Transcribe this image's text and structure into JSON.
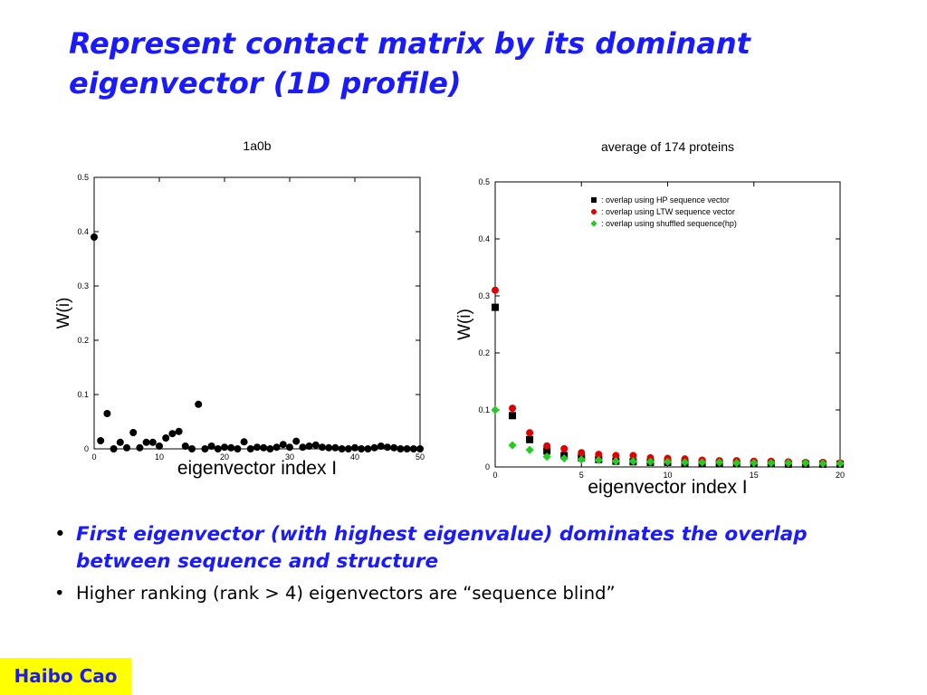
{
  "slide": {
    "title": "Represent contact matrix by its dominant eigenvector (1D profile)",
    "bullets": [
      "First eigenvector (with highest eigenvalue) dominates the overlap between sequence and structure",
      "Higher ranking (rank > 4) eigenvectors are “sequence blind”"
    ],
    "author": "Haibo Cao",
    "colors": {
      "title": "#1a1aff",
      "author_bg": "#ffff00"
    }
  },
  "chart_data": [
    {
      "type": "scatter",
      "title": "1a0b",
      "xlabel": "eigenvector index I",
      "ylabel": "W(i)",
      "xlim": [
        0,
        50
      ],
      "ylim": [
        0,
        0.5
      ],
      "xticks": [
        0,
        10,
        20,
        30,
        40,
        50
      ],
      "yticks": [
        0,
        0.1,
        0.2,
        0.3,
        0.4,
        0.5
      ],
      "ytick_labels": [
        "0",
        "0.1",
        "0.2",
        "0.3",
        "0.4",
        "0.5"
      ],
      "grid": false,
      "series": [
        {
          "color": "#000000",
          "marker": "circle",
          "x": [
            0,
            1,
            2,
            3,
            4,
            5,
            6,
            7,
            8,
            9,
            10,
            11,
            12,
            13,
            14,
            15,
            16,
            17,
            18,
            19,
            20,
            21,
            22,
            23,
            24,
            25,
            26,
            27,
            28,
            29,
            30,
            31,
            32,
            33,
            34,
            35,
            36,
            37,
            38,
            39,
            40,
            41,
            42,
            43,
            44,
            45,
            46,
            47,
            48,
            49,
            50
          ],
          "y": [
            0.39,
            0.015,
            0.065,
            0.0,
            0.012,
            0.002,
            0.03,
            0.002,
            0.012,
            0.012,
            0.005,
            0.02,
            0.028,
            0.032,
            0.005,
            0.0,
            0.082,
            0.0,
            0.005,
            0.0,
            0.003,
            0.002,
            0.0,
            0.013,
            0.0,
            0.003,
            0.002,
            0.0,
            0.003,
            0.008,
            0.003,
            0.014,
            0.003,
            0.005,
            0.007,
            0.003,
            0.002,
            0.002,
            0.0,
            0.0,
            0.002,
            0.0,
            0.0,
            0.002,
            0.005,
            0.003,
            0.002,
            0.0,
            0.0,
            0.0,
            0.0
          ]
        }
      ]
    },
    {
      "type": "scatter",
      "title": "average of 174 proteins",
      "xlabel": "eigenvector index I",
      "ylabel": "W(i)",
      "xlim": [
        0,
        20
      ],
      "ylim": [
        0,
        0.5
      ],
      "xticks": [
        0,
        5,
        10,
        15,
        20
      ],
      "yticks": [
        0,
        0.1,
        0.2,
        0.3,
        0.4,
        0.5
      ],
      "ytick_labels": [
        "0",
        "0.1",
        "0.2",
        "0.3",
        "0.4",
        "0.5"
      ],
      "grid": false,
      "legend_position": "top-right",
      "series": [
        {
          "name": "overlap using HP sequence vector",
          "color": "#000000",
          "marker": "square",
          "x": [
            0,
            1,
            2,
            3,
            4,
            5,
            6,
            7,
            8,
            9,
            10,
            11,
            12,
            13,
            14,
            15,
            16,
            17,
            18,
            19,
            20
          ],
          "y": [
            0.28,
            0.09,
            0.048,
            0.028,
            0.02,
            0.016,
            0.013,
            0.01,
            0.009,
            0.008,
            0.008,
            0.007,
            0.007,
            0.006,
            0.006,
            0.006,
            0.006,
            0.005,
            0.005,
            0.005,
            0.005
          ]
        },
        {
          "name": "overlap using LTW sequence vector",
          "color": "#e00000",
          "marker": "circle",
          "x": [
            0,
            1,
            2,
            3,
            4,
            5,
            6,
            7,
            8,
            9,
            10,
            11,
            12,
            13,
            14,
            15,
            16,
            17,
            18,
            19,
            20
          ],
          "y": [
            0.31,
            0.103,
            0.06,
            0.037,
            0.032,
            0.025,
            0.022,
            0.02,
            0.02,
            0.016,
            0.015,
            0.014,
            0.012,
            0.011,
            0.011,
            0.01,
            0.01,
            0.009,
            0.008,
            0.008,
            0.007
          ]
        },
        {
          "name": "overlap using shuffled sequence(hp)",
          "color": "#22cc22",
          "marker": "diamond",
          "x": [
            0,
            1,
            2,
            3,
            4,
            5,
            6,
            7,
            8,
            9,
            10,
            11,
            12,
            13,
            14,
            15,
            16,
            17,
            18,
            19,
            20
          ],
          "y": [
            0.1,
            0.038,
            0.03,
            0.018,
            0.015,
            0.013,
            0.012,
            0.01,
            0.01,
            0.009,
            0.009,
            0.008,
            0.008,
            0.008,
            0.007,
            0.007,
            0.007,
            0.007,
            0.007,
            0.006,
            0.006
          ]
        }
      ]
    }
  ]
}
